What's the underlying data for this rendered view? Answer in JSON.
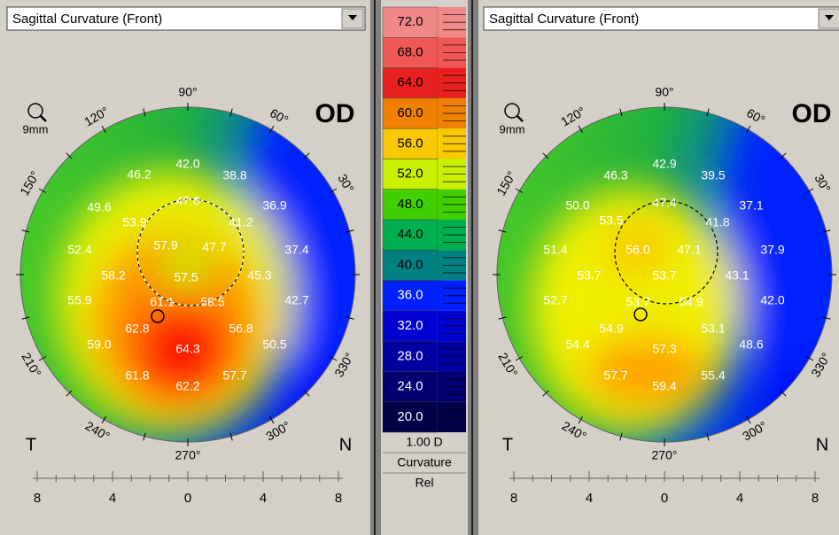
{
  "panels": [
    {
      "dropdown": "Sagittal Curvature (Front)",
      "eye": "OD",
      "zoom": "9mm",
      "angles": [
        "90°",
        "120°",
        "150°",
        "60°",
        "30°",
        "210°",
        "240°",
        "270°",
        "300°",
        "330°"
      ],
      "side_left": "T",
      "side_right": "N",
      "ruler": [
        "8",
        "4",
        "0",
        "4",
        "8"
      ],
      "values": [
        "46.2",
        "42.0",
        "38.8",
        "47.0",
        "49.6",
        "53.9",
        "41.2",
        "36.9",
        "57.9",
        "47.7",
        "52.4",
        "37.4",
        "58.2",
        "57.5",
        "45.3",
        "55.9",
        "61.1",
        "58.5",
        "42.7",
        "62.8",
        "56.8",
        "59.0",
        "64.3",
        "50.5",
        "61.8",
        "62.2",
        "57.7"
      ]
    },
    {
      "dropdown": "Sagittal Curvature (Front)",
      "eye": "OD",
      "zoom": "9mm",
      "angles": [
        "90°",
        "120°",
        "150°",
        "60°",
        "30°",
        "210°",
        "240°",
        "270°",
        "300°",
        "330°"
      ],
      "side_left": "T",
      "side_right": "N",
      "ruler": [
        "8",
        "4",
        "0",
        "4",
        "8"
      ],
      "values": [
        "42.9",
        "46.3",
        "39.5",
        "47.4",
        "50.0",
        "53.5",
        "41.8",
        "37.1",
        "56.0",
        "47.1",
        "51.4",
        "37.9",
        "53.7",
        "53.7",
        "43.1",
        "52.7",
        "53.7",
        "54.9",
        "42.0",
        "54.9",
        "53.1",
        "54.4",
        "57.3",
        "48.6",
        "57.7",
        "59.4",
        "55.4"
      ]
    }
  ],
  "legend": {
    "steps": [
      "72.0",
      "68.0",
      "64.0",
      "60.0",
      "56.0",
      "52.0",
      "48.0",
      "44.0",
      "40.0",
      "36.0",
      "32.0",
      "28.0",
      "24.0",
      "20.0"
    ],
    "step_size": "1.00 D",
    "map": "Curvature",
    "mode": "Rel"
  }
}
